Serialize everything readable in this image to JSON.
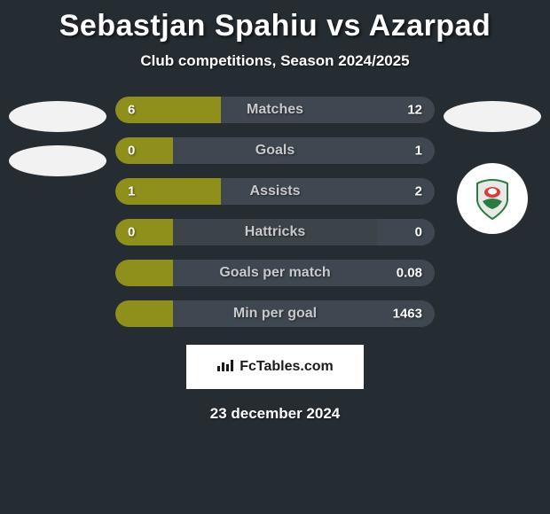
{
  "colors": {
    "background": "#252d33",
    "text_white": "#ffffff",
    "text_gray": "#c7c9cb",
    "bar_track": "#3d4449",
    "bar_left_fill": "#8f8f1c",
    "bar_right_fill": "#3f4750",
    "avatar_oval": "#f2f2f2",
    "badge_bg": "#ffffff",
    "footer_box": "#ffffff",
    "footer_text": "#1a1a1a"
  },
  "title": "Sebastjan Spahiu vs Azarpad",
  "subtitle": "Club competitions, Season 2024/2025",
  "bars": [
    {
      "label": "Matches",
      "left": "6",
      "right": "12",
      "left_pct": 33,
      "right_pct": 67
    },
    {
      "label": "Goals",
      "left": "0",
      "right": "1",
      "left_pct": 18,
      "right_pct": 82
    },
    {
      "label": "Assists",
      "left": "1",
      "right": "2",
      "left_pct": 33,
      "right_pct": 67
    },
    {
      "label": "Hattricks",
      "left": "0",
      "right": "0",
      "left_pct": 18,
      "right_pct": 18
    },
    {
      "label": "Goals per match",
      "left": "",
      "right": "0.08",
      "left_pct": 18,
      "right_pct": 82
    },
    {
      "label": "Min per goal",
      "left": "",
      "right": "1463",
      "left_pct": 18,
      "right_pct": 82
    }
  ],
  "footer": {
    "brand": "FcTables.com",
    "date": "23 december 2024"
  }
}
